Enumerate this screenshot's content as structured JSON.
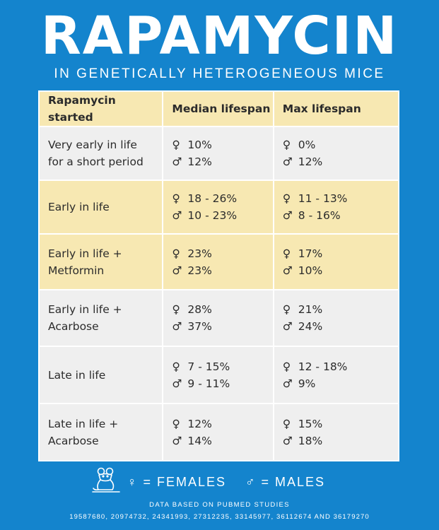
{
  "title": "RAPAMYCIN",
  "subtitle": "IN GENETICALLY HETEROGENEOUS MICE",
  "table": {
    "headers": [
      "Rapamycin started",
      "Median lifespan",
      "Max lifespan"
    ],
    "female_symbol": "♀",
    "male_symbol": "♂",
    "rows": [
      {
        "condition_1": "Very early in life",
        "condition_2": "for a short period",
        "median_f": "10%",
        "median_m": "12%",
        "max_f": "0%",
        "max_m": "12%"
      },
      {
        "condition_1": "Early in life",
        "condition_2": "",
        "median_f": "18 - 26%",
        "median_m": "10 - 23%",
        "max_f": "11 - 13%",
        "max_m": "8 - 16%"
      },
      {
        "condition_1": "Early in life +",
        "condition_2": "Metformin",
        "median_f": "23%",
        "median_m": "23%",
        "max_f": "17%",
        "max_m": "10%"
      },
      {
        "condition_1": "Early in life +",
        "condition_2": "Acarbose",
        "median_f": "28%",
        "median_m": "37%",
        "max_f": "21%",
        "max_m": "24%"
      },
      {
        "condition_1": "Late in life",
        "condition_2": "",
        "median_f": "7 - 15%",
        "median_m": "9 - 11%",
        "max_f": "12 - 18%",
        "max_m": "9%"
      },
      {
        "condition_1": "Late in life +",
        "condition_2": "Acarbose",
        "median_f": "12%",
        "median_m": "14%",
        "max_f": "15%",
        "max_m": "18%"
      }
    ]
  },
  "legend": {
    "icon": "mouse-icon",
    "females": "♀ = FEMALES",
    "males": "♂ = MALES"
  },
  "footer": {
    "line1": "DATA BASED ON PUBMED STUDIES",
    "line2": "19587680, 20974732, 24341993, 27312235, 33145977, 36112674 AND 36179270"
  },
  "colors": {
    "background": "#1484cd",
    "row_yellow": "#f7e8b2",
    "row_light": "#efefef",
    "text": "#2b2b2b"
  }
}
